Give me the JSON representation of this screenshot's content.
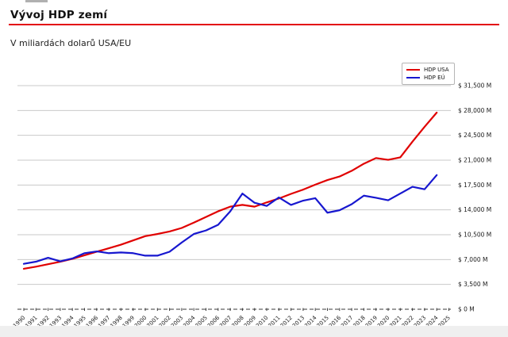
{
  "header": {
    "title": "Vývoj HDP zemí",
    "subtitle": "V miliardách dolarů USA/EU"
  },
  "colors": {
    "title_rule": "#e30613",
    "usa_line": "#e00000",
    "eu_line": "#1717cf",
    "grid": "#c9c9c9",
    "axis": "#3a3a3a",
    "tick_text": "#1a1a1a"
  },
  "chart_data": {
    "type": "line",
    "title": "Vývoj HDP zemí",
    "subtitle": "V miliardách dolarů USA/EU",
    "x": [
      1990,
      1991,
      1992,
      1993,
      1994,
      1995,
      1996,
      1997,
      1998,
      1999,
      2000,
      2001,
      2002,
      2003,
      2004,
      2005,
      2006,
      2007,
      2008,
      2009,
      2010,
      2011,
      2012,
      2013,
      2014,
      2015,
      2016,
      2017,
      2018,
      2019,
      2020,
      2021,
      2022,
      2023,
      2024
    ],
    "x_axis_ticks": [
      "1990",
      "1991",
      "1992",
      "1993",
      "1994",
      "1995",
      "1996",
      "1997",
      "1998",
      "1999",
      "2000",
      "2001",
      "2002",
      "2003",
      "2004",
      "2005",
      "2006",
      "2007",
      "2008",
      "2009",
      "2010",
      "2011",
      "2012",
      "2013",
      "2014",
      "2015",
      "2016",
      "2017",
      "2018",
      "2019",
      "2020",
      "2021",
      "2022",
      "2023",
      "2024",
      "2025"
    ],
    "series": [
      {
        "name": "HDP USA",
        "color": "#e00000",
        "values": [
          5700,
          6000,
          6350,
          6700,
          7100,
          7600,
          8100,
          8600,
          9100,
          9700,
          10300,
          10600,
          10950,
          11450,
          12200,
          13000,
          13800,
          14450,
          14700,
          14450,
          15050,
          15600,
          16250,
          16850,
          17550,
          18200,
          18700,
          19500,
          20500,
          21300,
          21050,
          21400,
          23600,
          25700,
          27700
        ]
      },
      {
        "name": "HDP EÚ",
        "color": "#1717cf",
        "values": [
          6400,
          6700,
          7250,
          6750,
          7150,
          7900,
          8150,
          7900,
          8000,
          7900,
          7550,
          7550,
          8100,
          9400,
          10600,
          11100,
          11900,
          13800,
          16300,
          15000,
          14550,
          15750,
          14700,
          15300,
          15650,
          13600,
          13950,
          14800,
          16000,
          15700,
          15350,
          16300,
          17250,
          16900,
          18900
        ]
      }
    ],
    "y_ticks": [
      0,
      3500,
      7000,
      10500,
      14000,
      17500,
      21000,
      24500,
      28000,
      31500
    ],
    "y_tick_labels": [
      "$ 0 M",
      "$ 3,500 M",
      "$ 7,000 M",
      "$ 10,500 M",
      "$ 14,000 M",
      "$ 17,500 M",
      "$ 21,000 M",
      "$ 24,500 M",
      "$ 28,000 M",
      "$ 31,500 M"
    ],
    "ylim": [
      0,
      34000
    ],
    "grid": true,
    "legend_position": "top-right"
  }
}
